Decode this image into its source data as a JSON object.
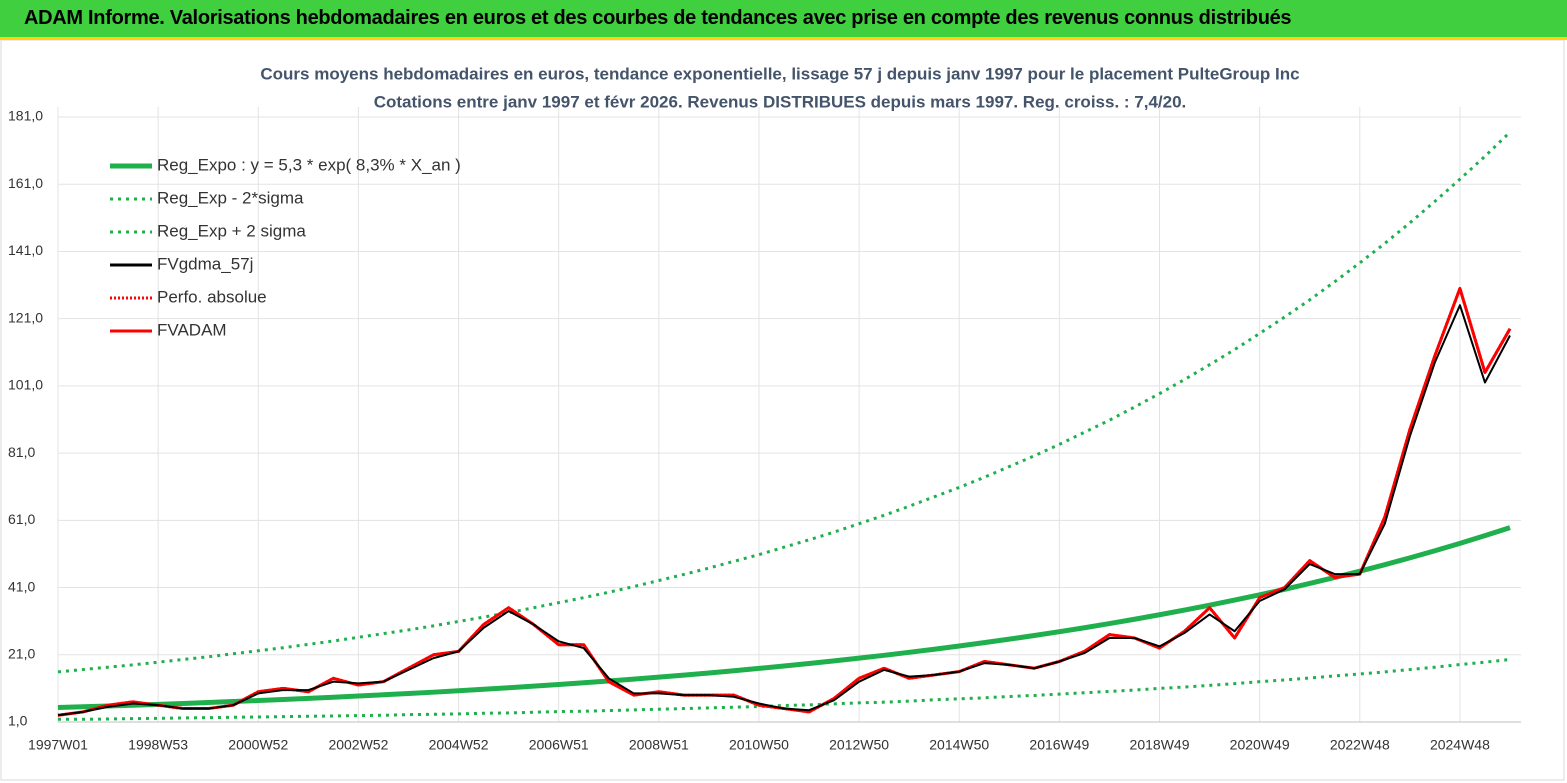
{
  "header": {
    "title": "ADAM Informe. Valorisations hebdomadaires en euros et des courbes de tendances avec prise en compte des revenus connus distribués"
  },
  "chart_data": {
    "type": "line",
    "title": "Cours moyens hebdomadaires en euros, tendance exponentielle, lissage 57 j depuis janv 1997 pour le placement PulteGroup Inc",
    "subtitle": "Cotations entre janv 1997 et févr 2026. Revenus DISTRIBUES depuis mars 1997. Reg. croiss. : 7,4/20.",
    "categories": [
      "1997W01",
      null,
      null,
      null,
      "1998W53",
      null,
      null,
      null,
      "2000W52",
      null,
      null,
      null,
      "2002W52",
      null,
      null,
      null,
      "2004W52",
      null,
      null,
      null,
      "2006W51",
      null,
      null,
      null,
      "2008W51",
      null,
      null,
      null,
      "2010W50",
      null,
      null,
      null,
      "2012W50",
      null,
      null,
      null,
      "2014W50",
      null,
      null,
      null,
      "2016W49",
      null,
      null,
      null,
      "2018W49",
      null,
      null,
      null,
      "2020W49",
      null,
      null,
      null,
      "2022W48",
      null,
      null,
      null,
      "2024W48",
      null,
      null
    ],
    "ylim": [
      1,
      181
    ],
    "yticks": [
      {
        "value": 1,
        "label": "1,0"
      },
      {
        "value": 21,
        "label": "21,0"
      },
      {
        "value": 41,
        "label": "41,0"
      },
      {
        "value": 61,
        "label": "61,0"
      },
      {
        "value": 81,
        "label": "81,0"
      },
      {
        "value": 101,
        "label": "101,0"
      },
      {
        "value": 121,
        "label": "121,0"
      },
      {
        "value": 141,
        "label": "141,0"
      },
      {
        "value": 161,
        "label": "161,0"
      },
      {
        "value": 181,
        "label": "181,0"
      }
    ],
    "grid": true,
    "legend": "upper left",
    "series": [
      {
        "name": "Reg_Expo : y = 5,3 * exp( 8,3% *  X_an )",
        "color": "#1fb04d",
        "style": "solid",
        "values": [
          5.3,
          5.52,
          5.76,
          6.0,
          6.26,
          6.52,
          6.8,
          7.09,
          7.39,
          7.7,
          8.02,
          8.36,
          8.72,
          9.09,
          9.47,
          9.87,
          10.29,
          10.73,
          11.18,
          11.66,
          12.15,
          12.67,
          13.2,
          13.76,
          14.35,
          14.95,
          15.59,
          16.25,
          16.94,
          17.66,
          18.4,
          19.18,
          20.0,
          20.84,
          21.73,
          22.65,
          23.61,
          24.61,
          25.65,
          26.74,
          27.87,
          29.05,
          30.28,
          31.57,
          32.91,
          34.3,
          35.75,
          37.27,
          38.85,
          40.49,
          42.21,
          44.0,
          45.86,
          47.81,
          49.83,
          51.95,
          54.15,
          56.44,
          58.83
        ]
      },
      {
        "name": "Reg_Exp - 2*sigma",
        "color": "#1fb04d",
        "style": "dotted",
        "values": [
          1.8,
          1.8,
          1.9,
          2.0,
          2.1,
          2.2,
          2.3,
          2.4,
          2.5,
          2.6,
          2.7,
          2.8,
          2.9,
          3.0,
          3.2,
          3.3,
          3.4,
          3.6,
          3.7,
          3.9,
          4.1,
          4.2,
          4.4,
          4.6,
          4.8,
          5.0,
          5.2,
          5.4,
          5.6,
          5.9,
          6.1,
          6.4,
          6.7,
          6.9,
          7.2,
          7.6,
          7.9,
          8.2,
          8.6,
          8.9,
          9.3,
          9.7,
          10.1,
          10.5,
          11.0,
          11.4,
          11.9,
          12.4,
          13.0,
          13.5,
          14.1,
          14.7,
          15.3,
          15.9,
          16.6,
          17.3,
          18.1,
          18.8,
          19.6
        ]
      },
      {
        "name": "Reg_Exp + 2 sigma",
        "color": "#1fb04d",
        "style": "dotted",
        "values": [
          15.9,
          16.6,
          17.3,
          18.0,
          18.8,
          19.6,
          20.4,
          21.3,
          22.2,
          23.1,
          24.1,
          25.1,
          26.2,
          27.3,
          28.4,
          29.6,
          30.9,
          32.2,
          33.5,
          35.0,
          36.5,
          38.0,
          39.6,
          41.3,
          43.1,
          44.9,
          46.8,
          48.8,
          50.8,
          53.0,
          55.2,
          57.5,
          60.0,
          62.5,
          65.2,
          68.0,
          70.8,
          73.8,
          77.0,
          80.2,
          83.6,
          87.2,
          90.8,
          94.7,
          98.7,
          102.9,
          107.3,
          111.8,
          116.6,
          121.5,
          126.6,
          132.0,
          137.6,
          143.4,
          149.5,
          155.9,
          162.5,
          169.3,
          176.5
        ]
      },
      {
        "name": "FVgdma_57j",
        "color": "#000000",
        "style": "solid",
        "values": [
          3,
          4,
          5.5,
          6.5,
          6,
          5,
          5,
          6,
          9.5,
          10.5,
          10.5,
          13,
          12.5,
          13,
          16.5,
          20,
          22,
          29,
          34,
          30,
          25,
          23,
          14,
          9.5,
          9.5,
          9,
          9,
          8.5,
          6.5,
          5,
          4.5,
          7.5,
          13,
          16.5,
          14.5,
          15,
          16,
          18.5,
          18,
          17,
          19,
          21.5,
          26,
          26,
          23.5,
          27.5,
          33,
          28,
          37,
          40.5,
          48,
          45,
          45,
          60,
          86,
          108,
          125,
          102,
          116
        ]
      },
      {
        "name": "Perfo. absolue",
        "color": "#ff0000",
        "style": "dotted",
        "values": [
          3,
          4,
          6,
          7,
          6,
          5,
          5,
          6,
          10,
          11,
          10,
          14,
          12,
          13,
          17,
          21,
          22,
          30,
          35,
          30,
          24,
          24,
          13,
          9,
          10,
          9,
          9,
          9,
          6,
          5,
          4,
          8,
          14,
          17,
          14,
          15,
          16,
          19,
          18,
          17,
          19,
          22,
          27,
          26,
          23,
          28,
          35,
          26,
          38,
          41,
          49,
          44,
          45,
          62,
          88,
          110,
          130,
          105,
          118
        ]
      },
      {
        "name": "FVADAM",
        "color": "#ff0000",
        "style": "solid",
        "values": [
          3,
          4,
          6,
          7,
          6,
          5,
          5,
          6,
          10,
          11,
          10,
          14,
          12,
          13,
          17,
          21,
          22,
          30,
          35,
          30,
          24,
          24,
          13,
          9,
          10,
          9,
          9,
          9,
          6,
          5,
          4,
          8,
          14,
          17,
          14,
          15,
          16,
          19,
          18,
          17,
          19,
          22,
          27,
          26,
          23,
          28,
          35,
          26,
          38,
          41,
          49,
          44,
          45,
          62,
          88,
          110,
          130,
          105,
          118
        ]
      }
    ]
  }
}
